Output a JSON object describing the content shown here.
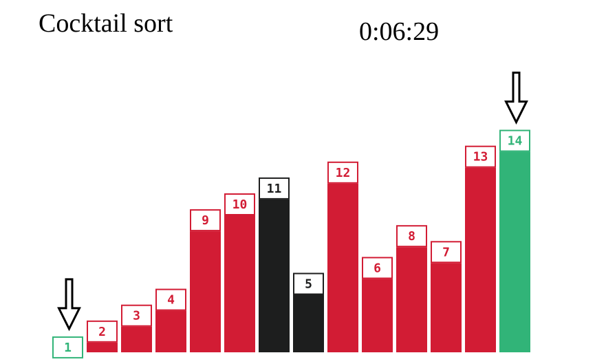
{
  "title": "Cocktail sort",
  "timer": "0:06:29",
  "colors": {
    "unsorted": "#d21c34",
    "sorted": "#31b478",
    "active": "#1d1e1e",
    "label_bg": "#ffffff",
    "arrow": "#000000"
  },
  "chart_data": {
    "type": "bar",
    "categories": [
      "1",
      "2",
      "3",
      "4",
      "9",
      "10",
      "11",
      "5",
      "12",
      "6",
      "8",
      "7",
      "13",
      "14"
    ],
    "values": [
      1,
      2,
      3,
      4,
      9,
      10,
      11,
      5,
      12,
      6,
      8,
      7,
      13,
      14
    ],
    "bar_states": [
      "sorted",
      "unsorted",
      "unsorted",
      "unsorted",
      "unsorted",
      "unsorted",
      "active",
      "active",
      "unsorted",
      "unsorted",
      "unsorted",
      "unsorted",
      "unsorted",
      "sorted"
    ],
    "pointer_markers": [
      0,
      13
    ],
    "ylim": [
      0,
      14
    ],
    "grid": false,
    "title": "",
    "xlabel": "",
    "ylabel": ""
  }
}
